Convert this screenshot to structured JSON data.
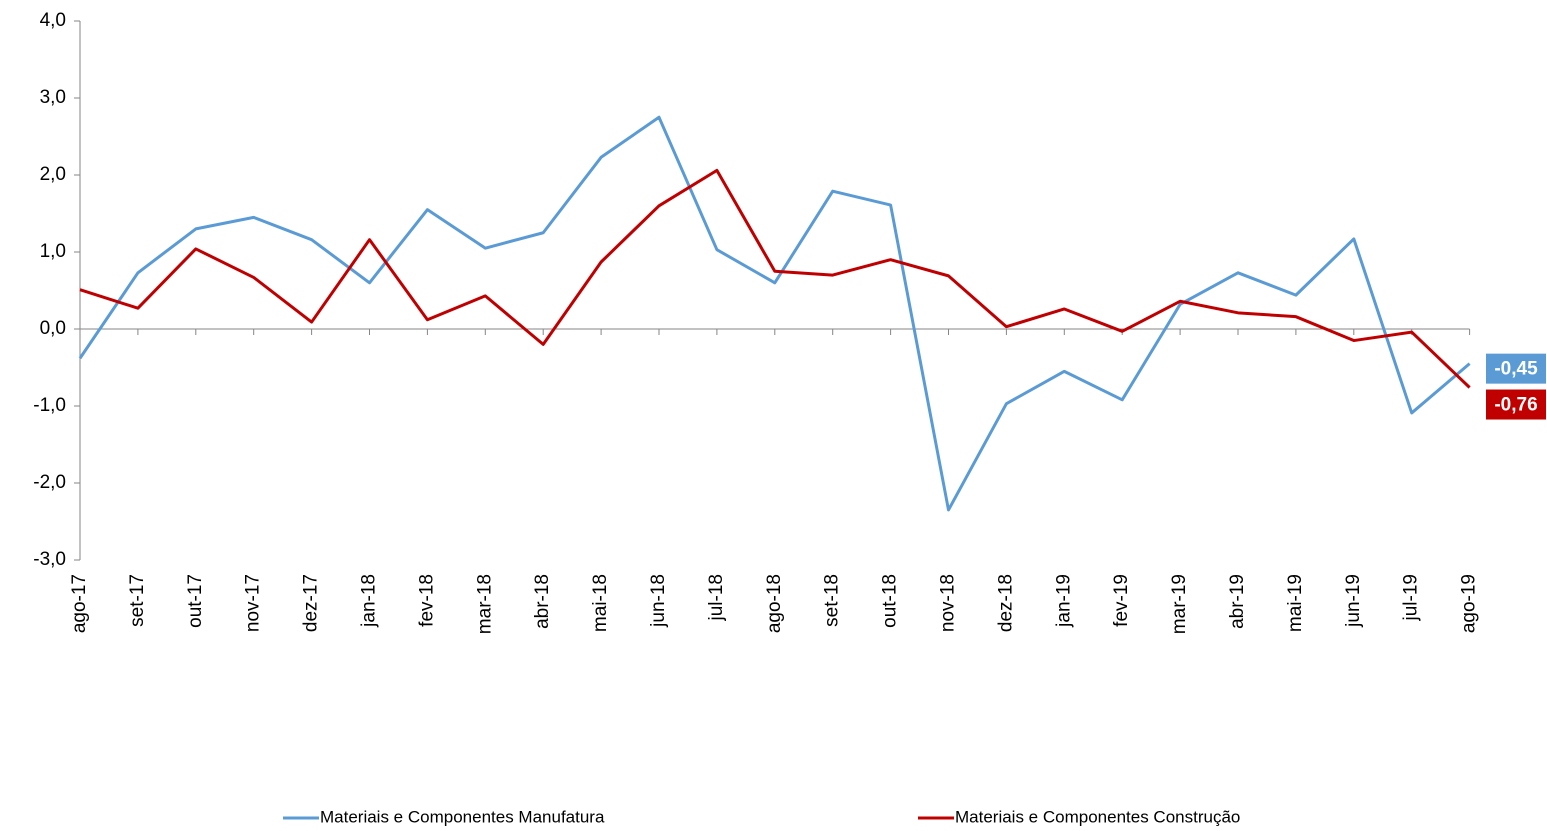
{
  "chart_data": {
    "type": "line",
    "categories": [
      "ago-17",
      "set-17",
      "out-17",
      "nov-17",
      "dez-17",
      "jan-18",
      "fev-18",
      "mar-18",
      "abr-18",
      "mai-18",
      "jun-18",
      "jul-18",
      "ago-18",
      "set-18",
      "out-18",
      "nov-18",
      "dez-18",
      "jan-19",
      "fev-19",
      "mar-19",
      "abr-19",
      "mai-19",
      "jun-19",
      "jul-19",
      "ago-19"
    ],
    "series": [
      {
        "name": "Materiais e Componentes Manufatura",
        "color": "#5b9bd5",
        "values": [
          -0.38,
          0.73,
          1.3,
          1.45,
          1.16,
          0.6,
          1.55,
          1.05,
          1.25,
          2.23,
          2.75,
          1.03,
          0.6,
          1.79,
          1.61,
          -2.35,
          -0.97,
          -0.55,
          -0.92,
          0.32,
          0.73,
          0.44,
          1.17,
          -1.09,
          -0.45
        ],
        "value_labels": [
          null,
          null,
          null,
          null,
          null,
          null,
          null,
          null,
          null,
          null,
          null,
          null,
          null,
          null,
          null,
          null,
          null,
          null,
          null,
          null,
          null,
          null,
          null,
          null,
          "-0,45"
        ]
      },
      {
        "name": "Materiais e Componentes Construção",
        "color": "#c00000",
        "values": [
          0.51,
          0.27,
          1.04,
          0.67,
          0.09,
          1.16,
          0.12,
          0.43,
          -0.2,
          0.87,
          1.6,
          2.06,
          0.75,
          0.7,
          0.9,
          0.69,
          0.03,
          0.26,
          -0.03,
          0.36,
          0.21,
          0.16,
          -0.15,
          -0.04,
          -0.76
        ],
        "value_labels": [
          null,
          null,
          null,
          null,
          null,
          null,
          null,
          null,
          null,
          null,
          null,
          null,
          null,
          null,
          null,
          null,
          null,
          null,
          null,
          null,
          null,
          null,
          null,
          null,
          "-0,76"
        ]
      }
    ],
    "ylim": [
      -3,
      4
    ],
    "yticks": [
      {
        "value": -3,
        "label": "-3,0"
      },
      {
        "value": -2,
        "label": "-2,0"
      },
      {
        "value": -1,
        "label": "-1,0"
      },
      {
        "value": 0,
        "label": "0,0"
      },
      {
        "value": 1,
        "label": "1,0"
      },
      {
        "value": 2,
        "label": "2,0"
      },
      {
        "value": 3,
        "label": "3,0"
      },
      {
        "value": 4,
        "label": "4,0"
      }
    ],
    "grid": false,
    "legend": "bottom"
  }
}
